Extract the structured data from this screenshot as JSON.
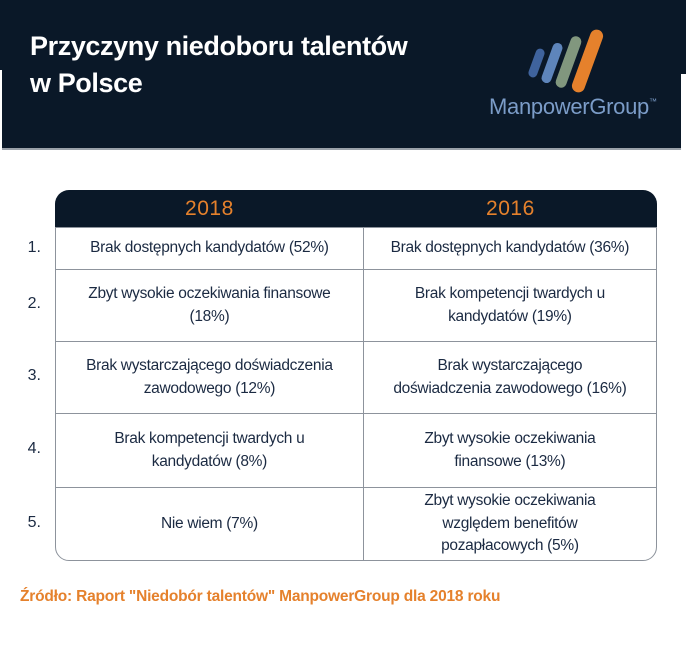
{
  "chart_data": {
    "type": "table",
    "title": "Przyczyny niedoboru talentów w Polsce",
    "columns": [
      "2018",
      "2016"
    ],
    "row_ranks": [
      "1.",
      "2.",
      "3.",
      "4.",
      "5."
    ],
    "series": [
      {
        "name": "2018",
        "items": [
          {
            "label": "Brak dostępnych kandydatów",
            "value_pct": 52
          },
          {
            "label": "Zbyt wysokie oczekiwania finansowe",
            "value_pct": 18
          },
          {
            "label": "Brak wystarczającego doświadczenia zawodowego",
            "value_pct": 12
          },
          {
            "label": "Brak kompetencji twardych u kandydatów",
            "value_pct": 8
          },
          {
            "label": "Nie wiem",
            "value_pct": 7
          }
        ]
      },
      {
        "name": "2016",
        "items": [
          {
            "label": "Brak dostępnych kandydatów",
            "value_pct": 36
          },
          {
            "label": "Brak kompetencji twardych u kandydatów",
            "value_pct": 19
          },
          {
            "label": "Brak wystarczającego doświadczenia zawodowego",
            "value_pct": 16
          },
          {
            "label": "Zbyt wysokie oczekiwania finansowe",
            "value_pct": 13
          },
          {
            "label": "Zbyt wysokie oczekiwania względem benefitów pozapłacowych",
            "value_pct": 5
          }
        ]
      }
    ],
    "source_note": "Źródło: Raport \"Niedobór talentów\" ManpowerGroup dla 2018 roku"
  },
  "header": {
    "title_line1": "Przyczyny niedoboru talentów",
    "title_line2": "w Polsce",
    "logo_text": "ManpowerGroup",
    "logo_trademark": "™"
  },
  "table": {
    "col_headers": [
      "2018",
      "2016"
    ],
    "rows": [
      {
        "rank": "1.",
        "y2018": "Brak dostępnych kandydatów (52%)",
        "y2016": "Brak dostępnych kandydatów (36%)"
      },
      {
        "rank": "2.",
        "y2018": "Zbyt wysokie oczekiwania finansowe (18%)",
        "y2016": "Brak kompetencji twardych u kandydatów (19%)"
      },
      {
        "rank": "3.",
        "y2018": "Brak wystarczającego doświadczenia zawodowego (12%)",
        "y2016": "Brak wystarczającego doświadczenia zawodowego (16%)"
      },
      {
        "rank": "4.",
        "y2018": "Brak kompetencji twardych u kandydatów (8%)",
        "y2016": "Zbyt wysokie oczekiwania finansowe (13%)"
      },
      {
        "rank": "5.",
        "y2018": "Nie wiem (7%)",
        "y2016": "Zbyt wysokie oczekiwania względem benefitów pozapłacowych (5%)"
      }
    ]
  },
  "footer": {
    "source": "Źródło: Raport \"Niedobór talentów\" ManpowerGroup dla 2018 roku"
  },
  "colors": {
    "navy": "#0a1828",
    "orange": "#e5812c",
    "logo_text_blue": "#7b9cc8",
    "logo_bar_blue_dark": "#3f639d",
    "logo_bar_blue": "#5e85bb",
    "logo_bar_sage": "#81977e",
    "logo_bar_orange": "#e5812c",
    "cell_text": "#1b2a42",
    "border_gray": "#8d939c"
  }
}
